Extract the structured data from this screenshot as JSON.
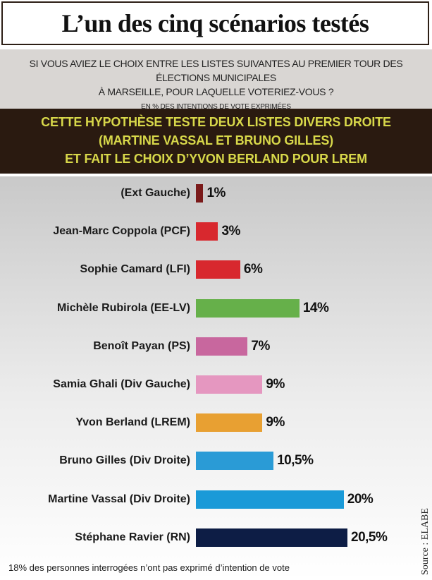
{
  "header": {
    "title": "L’un des cinq scénarios testés"
  },
  "question": {
    "line1": "Si vous aviez le choix entre les listes suivantes au premier tour des élections municipales",
    "line2": "à Marseille, pour laquelle voteriez-vous ?",
    "unit_note": "En % des intentions de vote exprimées"
  },
  "hypothesis": {
    "line1": "Cette hypothèse teste deux listes divers droite",
    "line2": "(Martine Vassal et Bruno Gilles)",
    "line3": "et fait le choix d’Yvon Berland pour LREM"
  },
  "chart_data": {
    "type": "bar",
    "orientation": "horizontal",
    "categories": [
      "(Ext Gauche)",
      "Jean-Marc Coppola (PCF)",
      "Sophie Camard (LFI)",
      "Michèle Rubirola (EE-LV)",
      "Benoît Payan (PS)",
      "Samia Ghali (Div Gauche)",
      "Yvon Berland (LREM)",
      "Bruno Gilles (Div Droite)",
      "Martine Vassal (Div Droite)",
      "Stéphane Ravier (RN)"
    ],
    "values": [
      1,
      3,
      6,
      14,
      7,
      9,
      9,
      10.5,
      20,
      20.5
    ],
    "value_labels": [
      "1%",
      "3%",
      "6%",
      "14%",
      "7%",
      "9%",
      "9%",
      "10,5%",
      "20%",
      "20,5%"
    ],
    "colors": [
      "#7a1a1a",
      "#d8282e",
      "#d8282e",
      "#66b04a",
      "#c8679e",
      "#e597c0",
      "#e8a032",
      "#2a9bd6",
      "#1a9ad8",
      "#0d1d45"
    ],
    "xlim": [
      0,
      20.5
    ],
    "grid": false,
    "legend": "none"
  },
  "footer": {
    "note": "18% des personnes interrogées n’ont pas exprimé d’intention de vote",
    "source": "Source : ELABE"
  }
}
